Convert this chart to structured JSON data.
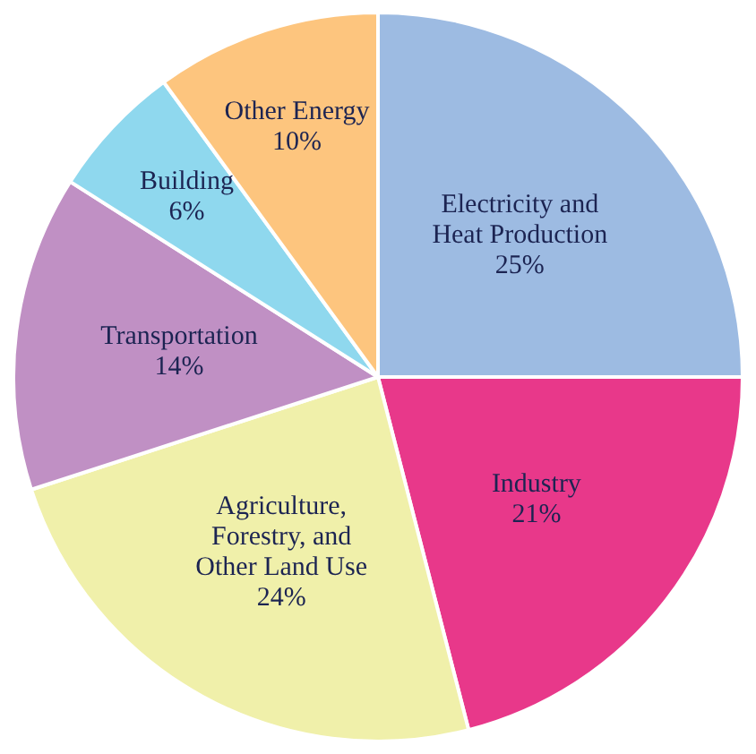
{
  "chart_data": {
    "type": "pie",
    "categories": [
      "Electricity and Heat Production",
      "Industry",
      "Agriculture, Forestry, and Other Land Use",
      "Transportation",
      "Building",
      "Other Energy"
    ],
    "values": [
      25,
      21,
      24,
      14,
      6,
      10
    ],
    "colors": [
      "#9dbbe2",
      "#e8388a",
      "#f0f0aa",
      "#c090c4",
      "#8fd8ee",
      "#fdc57e"
    ],
    "value_labels": [
      "25%",
      "21%",
      "24%",
      "14%",
      "6%",
      "10%"
    ]
  }
}
